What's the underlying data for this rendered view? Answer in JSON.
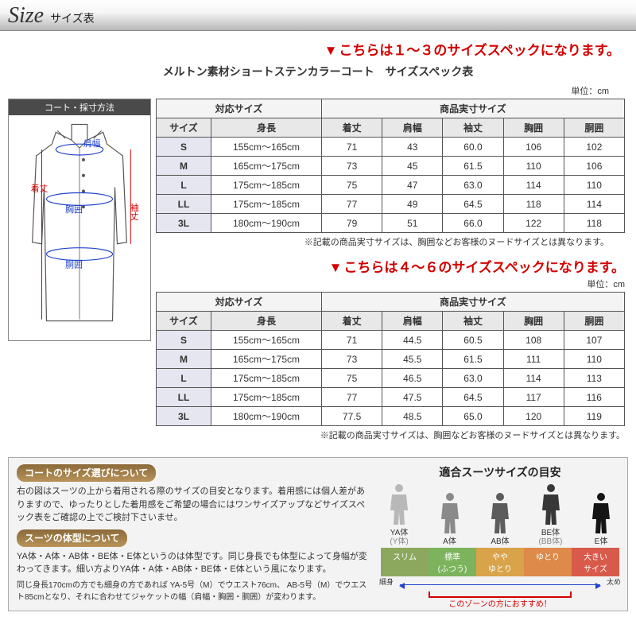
{
  "header": {
    "en": "Size",
    "jp": "サイズ表"
  },
  "heading1": "こちらは１～３のサイズスペックになります。",
  "heading2": "こちらは４～６のサイズスペックになります。",
  "tableTitle": "メルトン素材ショートステンカラーコート　サイズスペック表",
  "unit": "単位：cm",
  "diagramTitle": "コート・採寸方法",
  "diagramLabels": {
    "kitake": "着丈",
    "katahaba": "肩幅",
    "kyoui": "胸囲",
    "doui": "胴囲",
    "sodetake": "袖丈"
  },
  "columns": {
    "group1": "対応サイズ",
    "group2": "商品実寸サイズ",
    "c1": "サイズ",
    "c2": "身長",
    "c3": "着丈",
    "c4": "肩幅",
    "c5": "袖丈",
    "c6": "胸囲",
    "c7": "胴囲"
  },
  "table1": [
    {
      "size": "S",
      "height": "155cm～165cm",
      "a": "71",
      "b": "43",
      "c": "60.0",
      "d": "106",
      "e": "102"
    },
    {
      "size": "M",
      "height": "165cm～175cm",
      "a": "73",
      "b": "45",
      "c": "61.5",
      "d": "110",
      "e": "106"
    },
    {
      "size": "L",
      "height": "175cm～185cm",
      "a": "75",
      "b": "47",
      "c": "63.0",
      "d": "114",
      "e": "110"
    },
    {
      "size": "LL",
      "height": "175cm～185cm",
      "a": "77",
      "b": "49",
      "c": "64.5",
      "d": "118",
      "e": "114"
    },
    {
      "size": "3L",
      "height": "180cm～190cm",
      "a": "79",
      "b": "51",
      "c": "66.0",
      "d": "122",
      "e": "118"
    }
  ],
  "table2": [
    {
      "size": "S",
      "height": "155cm～165cm",
      "a": "71",
      "b": "44.5",
      "c": "60.5",
      "d": "108",
      "e": "107"
    },
    {
      "size": "M",
      "height": "165cm～175cm",
      "a": "73",
      "b": "45.5",
      "c": "61.5",
      "d": "111",
      "e": "110"
    },
    {
      "size": "L",
      "height": "175cm～185cm",
      "a": "75",
      "b": "46.5",
      "c": "63.0",
      "d": "114",
      "e": "113"
    },
    {
      "size": "LL",
      "height": "175cm～185cm",
      "a": "77",
      "b": "47.5",
      "c": "64.5",
      "d": "117",
      "e": "116"
    },
    {
      "size": "3L",
      "height": "180cm～190cm",
      "a": "77.5",
      "b": "48.5",
      "c": "65.0",
      "d": "120",
      "e": "119"
    }
  ],
  "note": "※記載の商品実寸サイズは、胸囲などお客様のヌードサイズとは異なります。",
  "info": {
    "title1": "コートのサイズ選びについて",
    "body1": "右の図はスーツの上から着用される際のサイズの目安となります。着用感には個人差がありますので、ゆったりとした着用感をご希望の場合にはワンサイズアップなどサイズスペック表をご確認の上でご検討下さいませ。",
    "title2": "スーツの体型について",
    "body2": "YA体・A体・AB体・BE体・E体というのは体型です。同じ身長でも体型によって身幅が変わってきます。細い方よりYA体・A体・AB体・BE体・E体という風になります。",
    "body3": "同じ身長170cmの方でも細身の方であれば YA-5号（M）でウエスト76cm、 AB-5号（M）でウエスト85cmとなり、それに合わせてジャケットの幅（肩幅・胸囲・胴囲）が変わります。",
    "rightTitle": "適合スーツサイズの目安",
    "bodyTypes": [
      {
        "label": "YA体",
        "sub": "(Y体)",
        "color": "#b8b8b8"
      },
      {
        "label": "A体",
        "sub": "",
        "color": "#8a8a8a"
      },
      {
        "label": "AB体",
        "sub": "",
        "color": "#5c5c5c"
      },
      {
        "label": "BE体",
        "sub": "(BB体)",
        "color": "#383838"
      },
      {
        "label": "E体",
        "sub": "",
        "color": "#151515"
      }
    ],
    "fitTypes": [
      {
        "label": "スリム",
        "color": "#8ca85e"
      },
      {
        "label": "標準\n(ふつう)",
        "color": "#7cb35c"
      },
      {
        "label": "やや\nゆとり",
        "color": "#d9a34a"
      },
      {
        "label": "ゆとり",
        "color": "#dd8a4a"
      },
      {
        "label": "大きい\nサイズ",
        "color": "#d85a4a"
      }
    ],
    "arrowLeft": "細身",
    "arrowRight": "太め",
    "bracketText": "このゾーンの方におすすめ！"
  }
}
